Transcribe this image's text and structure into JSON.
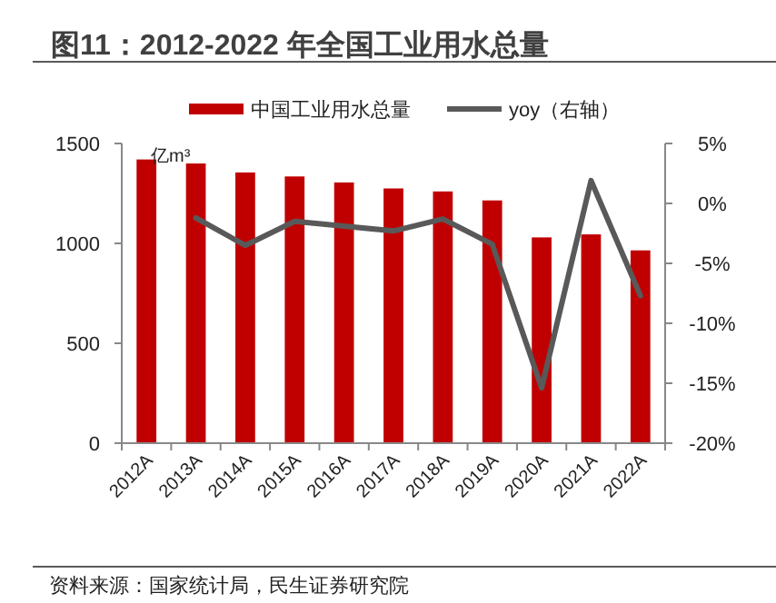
{
  "chart_data": {
    "type": "bar",
    "title": "图11：2012-2022 年全国工业用水总量",
    "ylabel": "亿m³",
    "categories": [
      "2012A",
      "2013A",
      "2014A",
      "2015A",
      "2016A",
      "2017A",
      "2018A",
      "2019A",
      "2020A",
      "2021A",
      "2022A"
    ],
    "series": [
      {
        "name": "中国工业用水总量",
        "color": "#c00000",
        "values": [
          1420,
          1400,
          1355,
          1335,
          1305,
          1275,
          1260,
          1215,
          1030,
          1045,
          965
        ]
      },
      {
        "name": "yoy（右轴）",
        "type": "line",
        "axis": "y2",
        "color": "#595959",
        "values": [
          null,
          -1.2,
          -3.5,
          -1.5,
          -1.9,
          -2.3,
          -1.3,
          -3.4,
          -15.4,
          1.9,
          -7.7
        ]
      }
    ],
    "ylim": [
      0,
      1500
    ],
    "yticks": [
      0,
      500,
      1000,
      1500
    ],
    "y2lim": [
      -20,
      5
    ],
    "y2ticks": [
      {
        "value": -20,
        "label": "-20%"
      },
      {
        "value": -15,
        "label": "-15%"
      },
      {
        "value": -10,
        "label": "-10%"
      },
      {
        "value": -5,
        "label": "-5%"
      },
      {
        "value": 0,
        "label": "0%"
      },
      {
        "value": 5,
        "label": "5%"
      }
    ],
    "legend": "top",
    "grid": false,
    "annotations": [
      "资料来源：国家统计局，民生证券研究院"
    ]
  }
}
